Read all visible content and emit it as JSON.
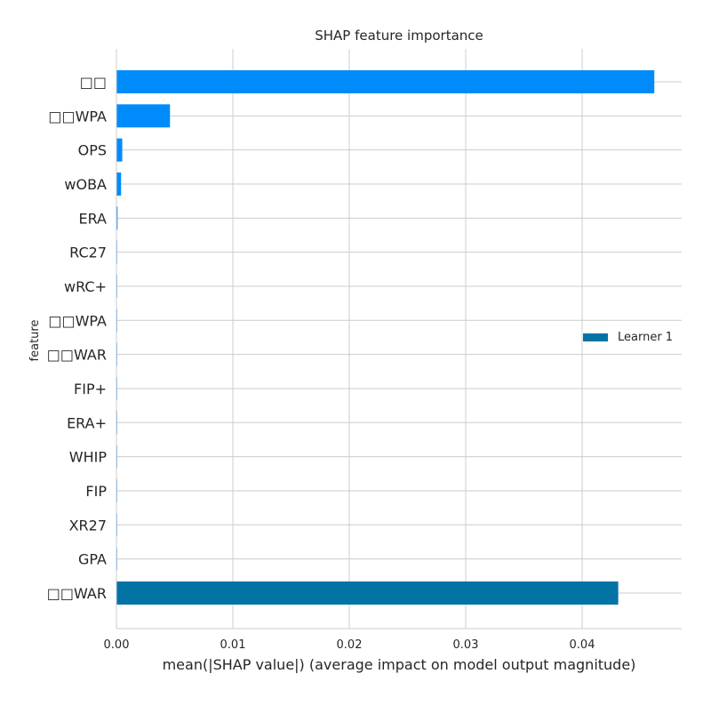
{
  "chart_data": {
    "type": "bar",
    "orientation": "horizontal",
    "title": "SHAP feature importance",
    "xlabel": "mean(|SHAP value|) (average impact on model output magnitude)",
    "ylabel": "feature",
    "xlim": [
      0,
      0.0487
    ],
    "xticks": [
      0,
      0.01,
      0.02,
      0.03,
      0.04
    ],
    "xtick_labels": [
      "0.00",
      "0.01",
      "0.02",
      "0.03",
      "0.04"
    ],
    "grid": true,
    "legend": {
      "position": "right",
      "entries": [
        "Learner 1"
      ]
    },
    "categories": [
      "□□",
      "□□WPA",
      "OPS",
      "wOBA",
      "ERA",
      "RC27",
      "wRC+",
      "□□WPA",
      "□□WAR",
      "FIP+",
      "ERA+",
      "WHIP",
      "FIP",
      "XR27",
      "GPA",
      "□□WAR"
    ],
    "values": [
      0.0462,
      0.0046,
      0.0005,
      0.0004,
      0.0001,
      3e-05,
      3e-05,
      2e-05,
      2e-05,
      2e-05,
      2e-05,
      2e-05,
      2e-05,
      2e-05,
      1e-05,
      0.0431
    ],
    "bar_colors": [
      "#008bfb",
      "#008bfb",
      "#008bfb",
      "#008bfb",
      "#008bfb",
      "#008bfb",
      "#008bfb",
      "#008bfb",
      "#008bfb",
      "#008bfb",
      "#008bfb",
      "#008bfb",
      "#008bfb",
      "#008bfb",
      "#008bfb",
      "#0173a5"
    ],
    "series": [
      {
        "name": "Learner 1",
        "color": "#0173a5"
      }
    ]
  },
  "colors": {
    "grid": "#cccccc",
    "axis": "#cccccc",
    "text": "#262626",
    "feature_bar": "#008bfb",
    "learner_bar": "#0173a5"
  }
}
